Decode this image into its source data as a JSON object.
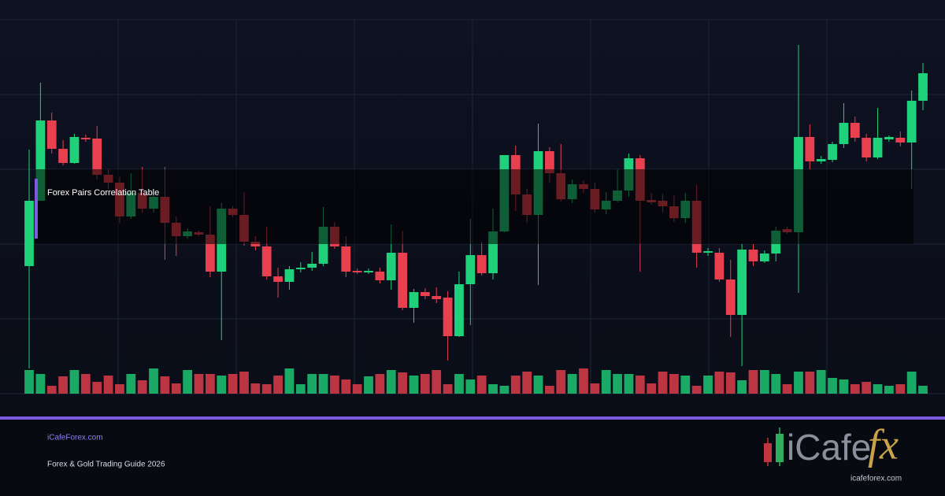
{
  "header": {
    "title": "Forex Pairs Correlation Table"
  },
  "footer": {
    "site": "iCafeForex.com",
    "subtitle": "Forex & Gold Trading Guide 2026"
  },
  "logo": {
    "text_main": "iCafe",
    "text_accent": "fx",
    "url": "icafeforex.com"
  },
  "chart_data": {
    "type": "candlestick",
    "up_color": "#1fd17a",
    "down_color": "#e8404f",
    "ylim": [
      0,
      475
    ],
    "open": [
      162,
      245,
      347,
      311,
      293,
      325,
      324,
      278,
      268,
      225,
      255,
      235,
      250,
      217,
      200,
      205,
      202,
      155,
      235,
      227,
      193,
      187,
      149,
      142,
      158,
      160,
      165,
      212,
      187,
      156,
      154,
      155,
      144,
      179,
      109,
      129,
      124,
      122,
      73,
      139,
      176,
      153,
      206,
      303,
      253,
      227,
      308,
      280,
      247,
      266,
      260,
      234,
      245,
      258,
      299,
      246,
      245,
      238,
      223,
      245,
      179,
      179,
      145,
      100,
      183,
      168,
      178,
      209,
      205,
      326,
      295,
      297,
      317,
      344,
      325,
      300,
      323,
      325,
      319,
      372
    ],
    "high": [
      310,
      395,
      357,
      322,
      330,
      329,
      340,
      285,
      275,
      280,
      288,
      260,
      288,
      225,
      210,
      207,
      238,
      242,
      238,
      256,
      200,
      212,
      160,
      162,
      167,
      180,
      237,
      218,
      200,
      159,
      159,
      160,
      215,
      207,
      133,
      134,
      135,
      130,
      155,
      222,
      193,
      235,
      303,
      315,
      260,
      343,
      313,
      317,
      272,
      271,
      268,
      256,
      285,
      305,
      303,
      255,
      254,
      252,
      255,
      265,
      185,
      185,
      170,
      190,
      190,
      182,
      212,
      212,
      443,
      342,
      302,
      320,
      369,
      352,
      330,
      363,
      328,
      333,
      385,
      420
    ],
    "low": [
      32,
      245,
      305,
      290,
      292,
      320,
      272,
      260,
      217,
      222,
      230,
      230,
      170,
      175,
      197,
      200,
      148,
      68,
      224,
      188,
      182,
      145,
      122,
      132,
      154,
      156,
      162,
      184,
      148,
      152,
      152,
      140,
      132,
      106,
      90,
      120,
      115,
      42,
      72,
      87,
      150,
      145,
      205,
      232,
      217,
      138,
      268,
      244,
      242,
      255,
      230,
      228,
      243,
      250,
      155,
      240,
      230,
      218,
      217,
      160,
      175,
      142,
      72,
      35,
      162,
      166,
      168,
      203,
      128,
      285,
      292,
      294,
      312,
      320,
      295,
      298,
      320,
      314,
      260,
      360
    ],
    "close": [
      245,
      347,
      311,
      293,
      326,
      323,
      278,
      268,
      225,
      255,
      235,
      250,
      217,
      200,
      206,
      202,
      155,
      235,
      227,
      193,
      187,
      149,
      142,
      158,
      160,
      165,
      212,
      187,
      155,
      154,
      156,
      144,
      179,
      109,
      129,
      124,
      120,
      73,
      139,
      176,
      153,
      206,
      303,
      253,
      227,
      308,
      280,
      247,
      266,
      260,
      234,
      245,
      258,
      299,
      245,
      243,
      238,
      223,
      245,
      179,
      181,
      145,
      100,
      183,
      168,
      178,
      207,
      205,
      326,
      295,
      298,
      317,
      344,
      325,
      300,
      325,
      326,
      319,
      372,
      407
    ],
    "volume": [
      30,
      25,
      10,
      22,
      30,
      25,
      15,
      23,
      12,
      25,
      17,
      32,
      22,
      13,
      30,
      25,
      25,
      23,
      25,
      28,
      13,
      12,
      23,
      32,
      12,
      25,
      25,
      23,
      18,
      12,
      22,
      25,
      30,
      27,
      23,
      25,
      30,
      12,
      25,
      18,
      23,
      12,
      10,
      23,
      28,
      23,
      10,
      30,
      25,
      32,
      13,
      30,
      25,
      25,
      23,
      13,
      28,
      25,
      23,
      10,
      23,
      28,
      27,
      17,
      30,
      30,
      25,
      12,
      28,
      28,
      30,
      20,
      18,
      12,
      15,
      12,
      10,
      12,
      28,
      10
    ]
  }
}
